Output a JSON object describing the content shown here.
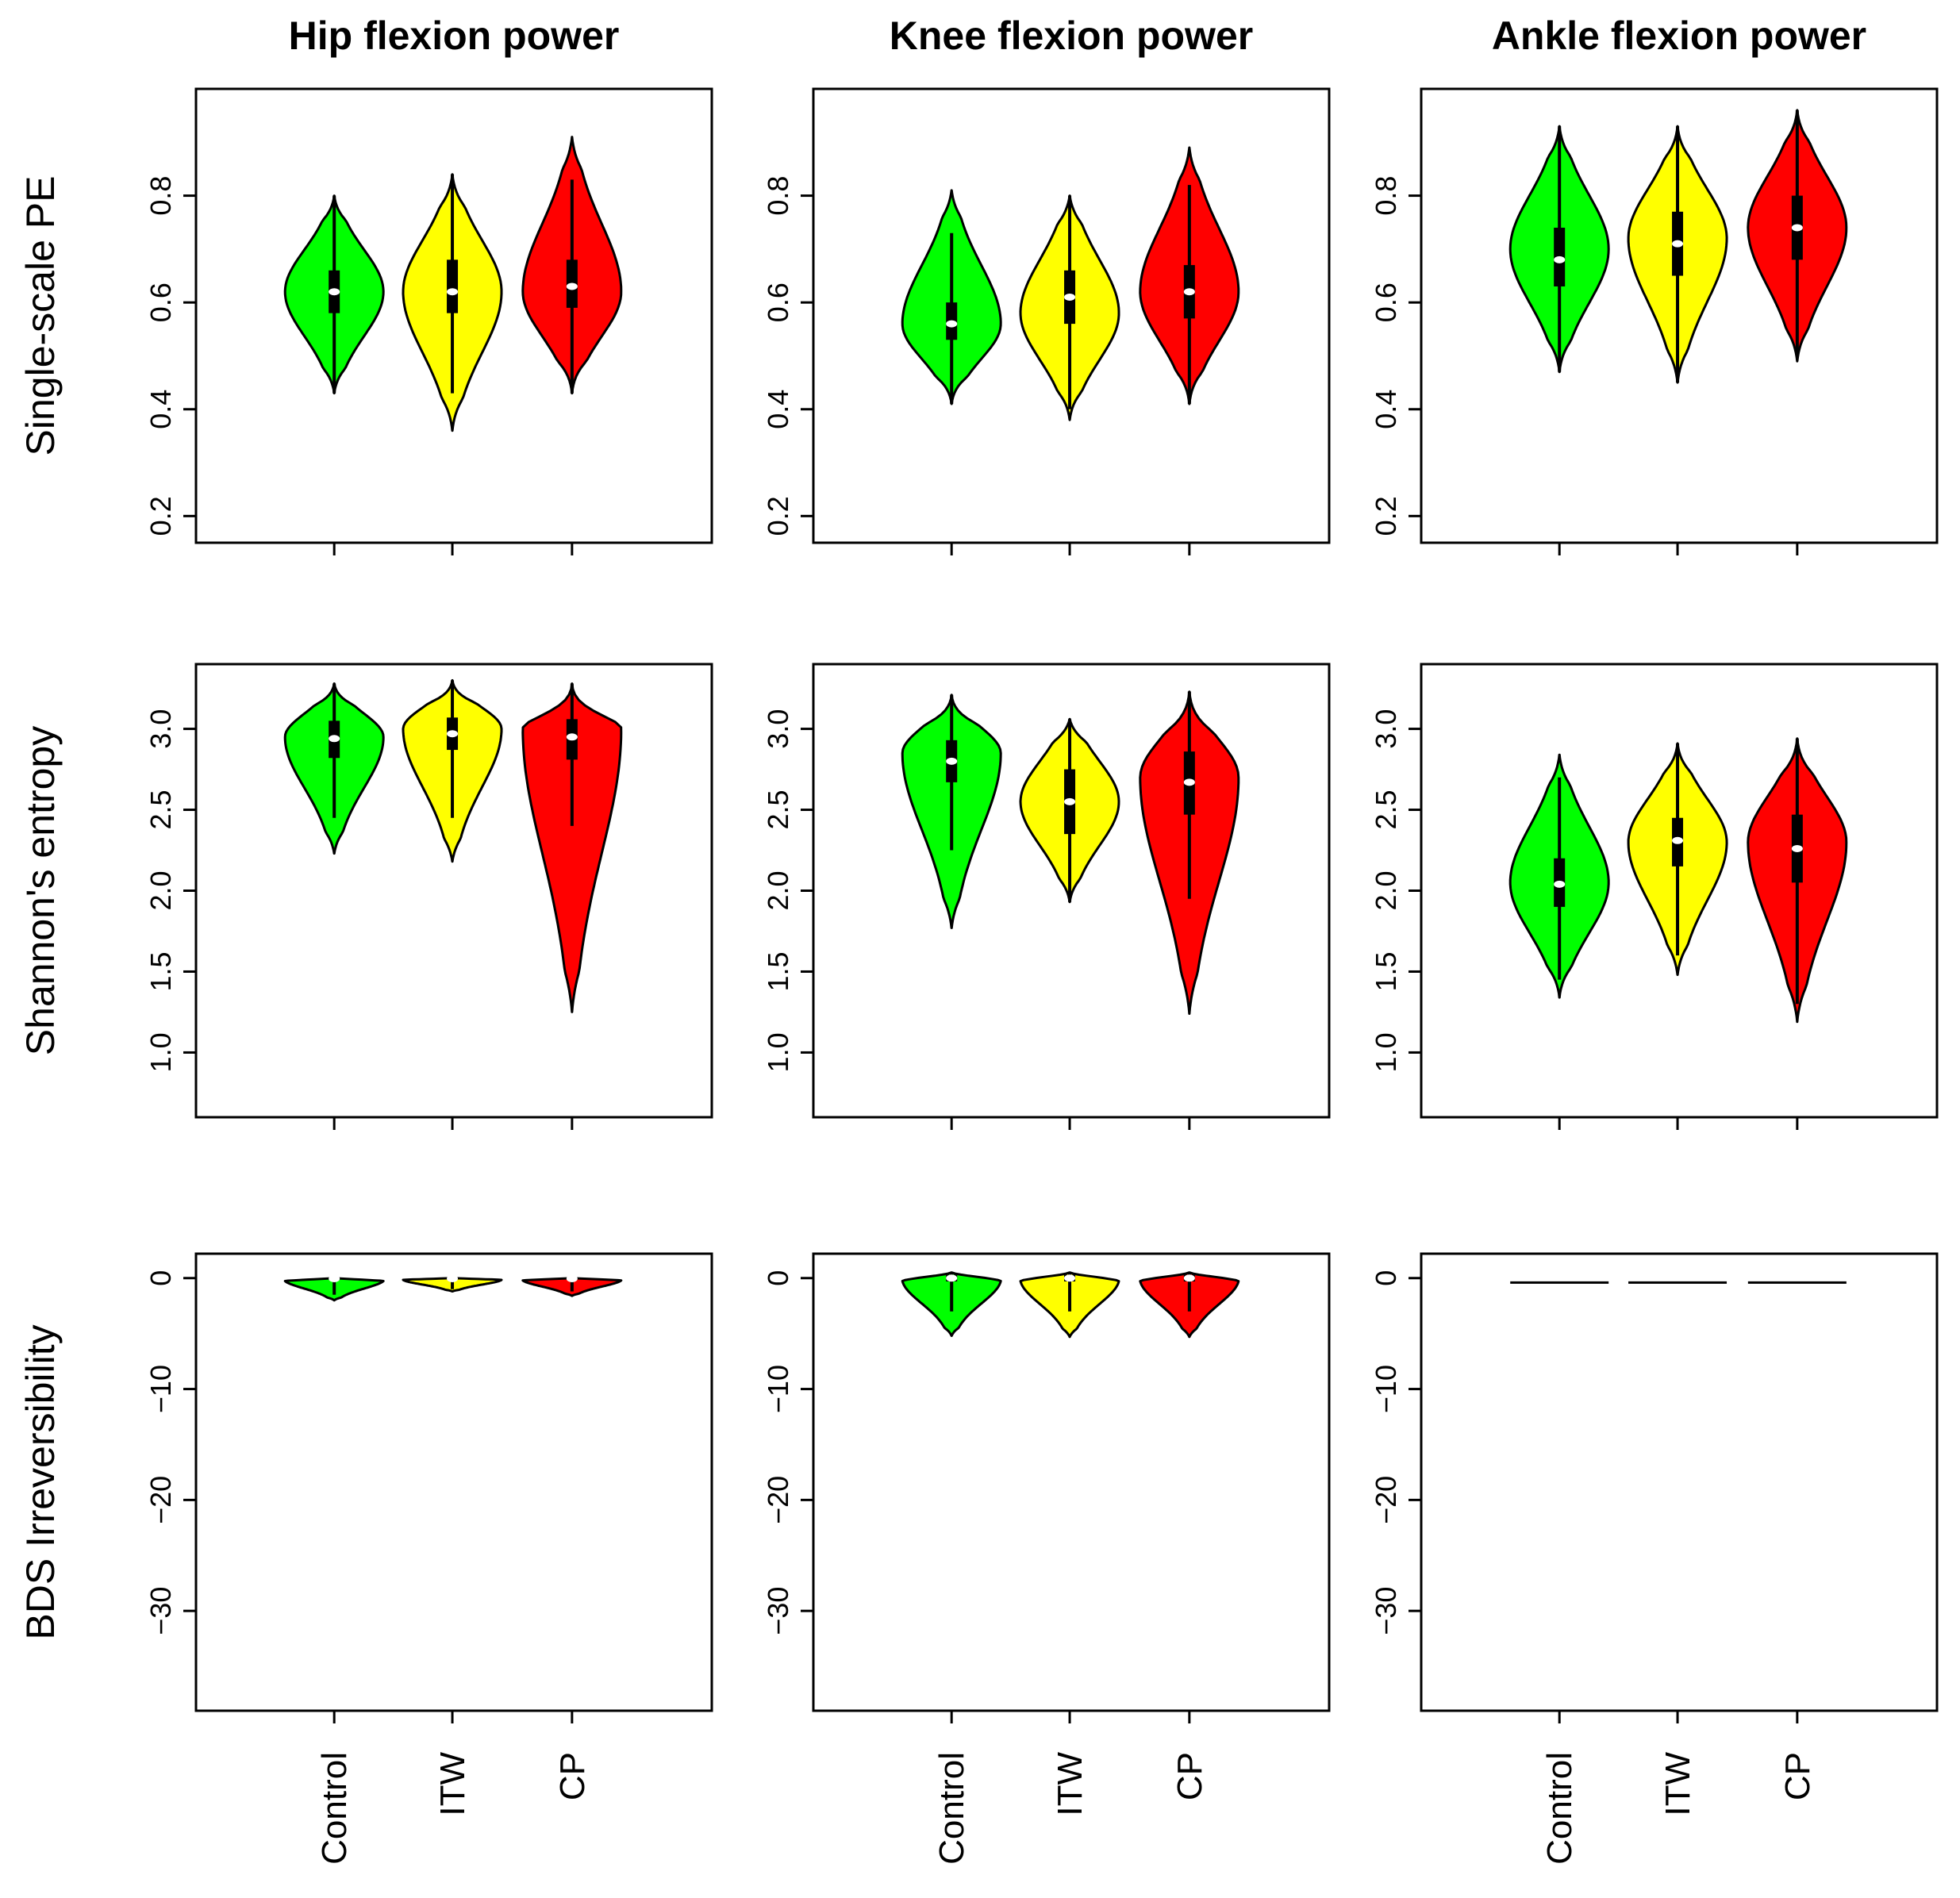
{
  "chart_data": {
    "type": "violin",
    "groups": [
      "Control",
      "ITW",
      "CP"
    ],
    "colors": {
      "Control": "#00ff00",
      "ITW": "#ffff00",
      "CP": "#ff0000"
    },
    "columns": [
      "Hip flexion power",
      "Knee flexion power",
      "Ankle flexion power"
    ],
    "rows": [
      {
        "ylabel": "Single-scale PE",
        "ylim": [
          0.15,
          1.0
        ],
        "yticks": [
          0.2,
          0.4,
          0.6,
          0.8
        ],
        "tick_labels": [
          "0.2",
          "0.4",
          "0.6",
          "0.8"
        ]
      },
      {
        "ylabel": "Shannon's entropy",
        "ylim": [
          0.6,
          3.4
        ],
        "yticks": [
          1.0,
          1.5,
          2.0,
          2.5,
          3.0
        ],
        "tick_labels": [
          "1.0",
          "1.5",
          "2.0",
          "2.5",
          "3.0"
        ]
      },
      {
        "ylabel": "BDS Irreversibility",
        "ylim": [
          -39,
          2.2
        ],
        "yticks": [
          -30,
          -20,
          -10,
          0
        ],
        "tick_labels": [
          "−30",
          "−20",
          "−10",
          "0"
        ]
      }
    ],
    "panels": [
      {
        "row": 0,
        "col": 0,
        "violins": [
          {
            "group": "Control",
            "min": 0.43,
            "max": 0.8,
            "q1": 0.58,
            "q3": 0.66,
            "median": 0.62,
            "mode": 0.62,
            "whisker_lo": 0.43,
            "whisker_hi": 0.8
          },
          {
            "group": "ITW",
            "min": 0.36,
            "max": 0.84,
            "q1": 0.58,
            "q3": 0.68,
            "median": 0.62,
            "mode": 0.62,
            "whisker_lo": 0.43,
            "whisker_hi": 0.84
          },
          {
            "group": "CP",
            "min": 0.43,
            "max": 0.91,
            "q1": 0.59,
            "q3": 0.68,
            "median": 0.63,
            "mode": 0.62,
            "whisker_lo": 0.43,
            "whisker_hi": 0.83
          }
        ]
      },
      {
        "row": 0,
        "col": 1,
        "violins": [
          {
            "group": "Control",
            "min": 0.41,
            "max": 0.81,
            "q1": 0.53,
            "q3": 0.6,
            "median": 0.56,
            "mode": 0.56,
            "whisker_lo": 0.41,
            "whisker_hi": 0.73
          },
          {
            "group": "ITW",
            "min": 0.38,
            "max": 0.8,
            "q1": 0.56,
            "q3": 0.66,
            "median": 0.61,
            "mode": 0.58,
            "whisker_lo": 0.4,
            "whisker_hi": 0.8
          },
          {
            "group": "CP",
            "min": 0.41,
            "max": 0.89,
            "q1": 0.57,
            "q3": 0.67,
            "median": 0.62,
            "mode": 0.62,
            "whisker_lo": 0.41,
            "whisker_hi": 0.82
          }
        ]
      },
      {
        "row": 0,
        "col": 2,
        "violins": [
          {
            "group": "Control",
            "min": 0.47,
            "max": 0.93,
            "q1": 0.63,
            "q3": 0.74,
            "median": 0.68,
            "mode": 0.7,
            "whisker_lo": 0.47,
            "whisker_hi": 0.93
          },
          {
            "group": "ITW",
            "min": 0.45,
            "max": 0.93,
            "q1": 0.65,
            "q3": 0.77,
            "median": 0.71,
            "mode": 0.72,
            "whisker_lo": 0.45,
            "whisker_hi": 0.93
          },
          {
            "group": "CP",
            "min": 0.49,
            "max": 0.96,
            "q1": 0.68,
            "q3": 0.8,
            "median": 0.74,
            "mode": 0.74,
            "whisker_lo": 0.5,
            "whisker_hi": 0.96
          }
        ]
      },
      {
        "row": 1,
        "col": 0,
        "violins": [
          {
            "group": "Control",
            "min": 2.23,
            "max": 3.28,
            "q1": 2.82,
            "q3": 3.05,
            "median": 2.94,
            "mode": 2.95,
            "whisker_lo": 2.45,
            "whisker_hi": 3.28
          },
          {
            "group": "ITW",
            "min": 2.18,
            "max": 3.3,
            "q1": 2.87,
            "q3": 3.07,
            "median": 2.97,
            "mode": 3.0,
            "whisker_lo": 2.45,
            "whisker_hi": 3.3
          },
          {
            "group": "CP",
            "min": 1.25,
            "max": 3.28,
            "q1": 2.81,
            "q3": 3.06,
            "median": 2.95,
            "mode": 3.0,
            "whisker_lo": 2.4,
            "whisker_hi": 3.28
          }
        ]
      },
      {
        "row": 1,
        "col": 1,
        "violins": [
          {
            "group": "Control",
            "min": 1.77,
            "max": 3.21,
            "q1": 2.67,
            "q3": 2.93,
            "median": 2.8,
            "mode": 2.85,
            "whisker_lo": 2.25,
            "whisker_hi": 3.21
          },
          {
            "group": "ITW",
            "min": 1.93,
            "max": 3.06,
            "q1": 2.35,
            "q3": 2.75,
            "median": 2.55,
            "mode": 2.55,
            "whisker_lo": 1.93,
            "whisker_hi": 3.06
          },
          {
            "group": "CP",
            "min": 1.24,
            "max": 3.23,
            "q1": 2.47,
            "q3": 2.86,
            "median": 2.67,
            "mode": 2.7,
            "whisker_lo": 1.95,
            "whisker_hi": 3.23
          }
        ]
      },
      {
        "row": 1,
        "col": 2,
        "violins": [
          {
            "group": "Control",
            "min": 1.34,
            "max": 2.84,
            "q1": 1.9,
            "q3": 2.2,
            "median": 2.04,
            "mode": 2.05,
            "whisker_lo": 1.45,
            "whisker_hi": 2.7
          },
          {
            "group": "ITW",
            "min": 1.48,
            "max": 2.91,
            "q1": 2.15,
            "q3": 2.45,
            "median": 2.31,
            "mode": 2.3,
            "whisker_lo": 1.6,
            "whisker_hi": 2.91
          },
          {
            "group": "CP",
            "min": 1.19,
            "max": 2.94,
            "q1": 2.05,
            "q3": 2.47,
            "median": 2.26,
            "mode": 2.3,
            "whisker_lo": 1.3,
            "whisker_hi": 2.94
          }
        ]
      },
      {
        "row": 2,
        "col": 0,
        "violins": [
          {
            "group": "Control",
            "min": -2.0,
            "max": 0.0,
            "q1": -0.1,
            "q3": 0.0,
            "median": -0.05,
            "mode": -0.1,
            "whisker_lo": -1.5,
            "whisker_hi": 0.0
          },
          {
            "group": "ITW",
            "min": -1.2,
            "max": 0.0,
            "q1": -0.1,
            "q3": 0.0,
            "median": -0.05,
            "mode": -0.1,
            "whisker_lo": -1.0,
            "whisker_hi": 0.0
          },
          {
            "group": "CP",
            "min": -1.6,
            "max": 0.0,
            "q1": -0.1,
            "q3": 0.0,
            "median": -0.05,
            "mode": -0.1,
            "whisker_lo": -1.2,
            "whisker_hi": 0.0
          }
        ]
      },
      {
        "row": 2,
        "col": 1,
        "violins": [
          {
            "group": "Control",
            "min": -5.2,
            "max": 0.5,
            "q1": -0.3,
            "q3": 0.3,
            "median": 0.0,
            "mode": 0.0,
            "whisker_lo": -3.0,
            "whisker_hi": 0.5
          },
          {
            "group": "ITW",
            "min": -5.3,
            "max": 0.5,
            "q1": -0.3,
            "q3": 0.3,
            "median": 0.0,
            "mode": 0.0,
            "whisker_lo": -3.0,
            "whisker_hi": 0.5
          },
          {
            "group": "CP",
            "min": -5.3,
            "max": 0.5,
            "q1": -0.3,
            "q3": 0.3,
            "median": 0.0,
            "mode": 0.0,
            "whisker_lo": -3.0,
            "whisker_hi": 0.5
          }
        ]
      },
      {
        "row": 2,
        "col": 2,
        "violins": [
          {
            "group": "Control",
            "min": -0.4,
            "max": -0.4,
            "q1": -0.4,
            "q3": -0.4,
            "median": -0.4,
            "mode": -0.4,
            "whisker_lo": -0.4,
            "whisker_hi": -0.4
          },
          {
            "group": "ITW",
            "min": -0.4,
            "max": -0.4,
            "q1": -0.4,
            "q3": -0.4,
            "median": -0.4,
            "mode": -0.4,
            "whisker_lo": -0.4,
            "whisker_hi": -0.4
          },
          {
            "group": "CP",
            "min": -0.4,
            "max": -0.4,
            "q1": -0.4,
            "q3": -0.4,
            "median": -0.4,
            "mode": -0.4,
            "whisker_lo": -0.4,
            "whisker_hi": -0.4
          }
        ]
      }
    ]
  }
}
